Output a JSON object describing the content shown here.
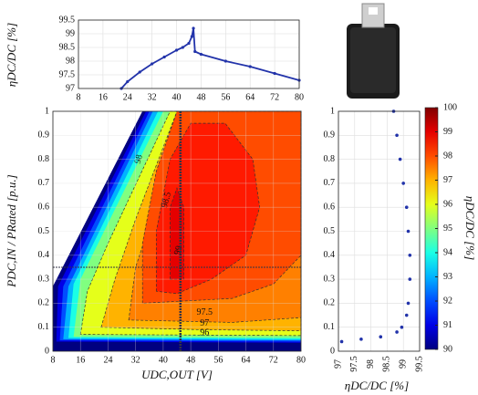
{
  "chart_data": [
    {
      "type": "line",
      "ylabel": "ηDC/DC [%]",
      "x": [
        22,
        24,
        28,
        32,
        36,
        40,
        42,
        44,
        45,
        45.5,
        46,
        48,
        56,
        64,
        72,
        80
      ],
      "series": [
        {
          "color": "#2233aa",
          "values": [
            97,
            97.25,
            97.6,
            97.9,
            98.15,
            98.4,
            98.5,
            98.65,
            98.9,
            99.2,
            98.35,
            98.25,
            98.0,
            97.8,
            97.55,
            97.3
          ]
        }
      ],
      "xlim": [
        8,
        80
      ],
      "xticks": [
        8,
        16,
        24,
        32,
        40,
        48,
        56,
        64,
        72,
        80
      ],
      "ylim": [
        97,
        99.5
      ],
      "yticks": [
        97,
        97.5,
        98,
        98.5,
        99,
        99.5
      ],
      "grid": true
    },
    {
      "type": "contour",
      "xlabel": "UDC,OUT [V]",
      "ylabel": "PDC,IN / PRated [p.u.]",
      "xlim": [
        8,
        80
      ],
      "xticks": [
        8,
        16,
        24,
        32,
        40,
        48,
        56,
        64,
        72,
        80
      ],
      "ylim": [
        0,
        1
      ],
      "yticks": [
        0,
        0.1,
        0.2,
        0.3,
        0.4,
        0.5,
        0.6,
        0.7,
        0.8,
        0.9,
        1
      ],
      "contour_levels": [
        96,
        97,
        97.5,
        98,
        98.5,
        99
      ],
      "crosshair": {
        "x": 45,
        "y": 0.35
      },
      "zlim": [
        90,
        100
      ],
      "zticks": [
        90,
        91,
        92,
        93,
        94,
        95,
        96,
        97,
        98,
        99,
        100
      ],
      "zlabel": "ηDC/DC [%]",
      "grid": true
    },
    {
      "type": "scatter",
      "xlabel": "ηDC/DC [%]",
      "x": [
        97.1,
        97.7,
        98.3,
        98.8,
        98.95,
        99.1,
        99.15,
        99.2,
        99.2,
        99.15,
        99.1,
        99.0,
        98.9,
        98.8,
        98.7
      ],
      "y": [
        0.04,
        0.05,
        0.06,
        0.08,
        0.1,
        0.15,
        0.2,
        0.3,
        0.4,
        0.5,
        0.6,
        0.7,
        0.8,
        0.9,
        1.0
      ],
      "color": "#2233aa",
      "xlim": [
        97,
        99.5
      ],
      "xticks": [
        97,
        97.5,
        98,
        98.5,
        99,
        99.5
      ],
      "ylim": [
        0,
        1
      ],
      "yticks": [
        0,
        0.1,
        0.2,
        0.3,
        0.4,
        0.5,
        0.6,
        0.7,
        0.8,
        0.9,
        1
      ],
      "grid": true
    }
  ]
}
